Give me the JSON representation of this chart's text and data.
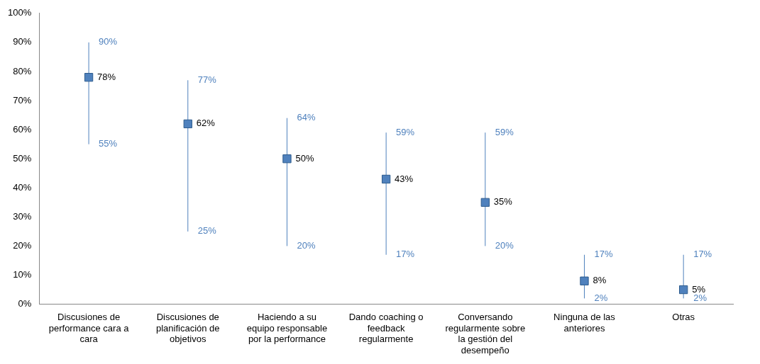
{
  "chart_data": {
    "type": "scatter",
    "categories": [
      "Discusiones de performance cara a cara",
      "Discusiones de planificación de objetivos",
      "Haciendo a su equipo responsable por la performance",
      "Dando coaching o feedback regularmente",
      "Conversando regularmente sobre la gestión del desempeño",
      "Ninguna de las anteriores",
      "Otras"
    ],
    "series": [
      {
        "color": "#4f81bd",
        "values": [
          78,
          62,
          50,
          43,
          35,
          8,
          5
        ],
        "errors": [
          [
            55,
            90
          ],
          [
            25,
            77
          ],
          [
            20,
            64
          ],
          [
            17,
            59
          ],
          [
            20,
            59
          ],
          [
            2,
            17
          ],
          [
            2,
            17
          ]
        ],
        "value_labels": [
          "78%",
          "62%",
          "50%",
          "43%",
          "35%",
          "8%",
          "5%"
        ]
      }
    ],
    "annotations": [
      {
        "text": "90%",
        "x": "Discusiones de performance cara a cara",
        "y": 90
      },
      {
        "text": "55%",
        "x": "Discusiones de performance cara a cara",
        "y": 55
      },
      {
        "text": "77%",
        "x": "Discusiones de planificación de objetivos",
        "y": 77
      },
      {
        "text": "25%",
        "x": "Discusiones de planificación de objetivos",
        "y": 25
      },
      {
        "text": "64%",
        "x": "Haciendo a su equipo responsable por la performance",
        "y": 64
      },
      {
        "text": "20%",
        "x": "Haciendo a su equipo responsable por la performance",
        "y": 20
      },
      {
        "text": "59%",
        "x": "Dando coaching o feedback regularmente",
        "y": 59
      },
      {
        "text": "17%",
        "x": "Dando coaching o feedback regularmente",
        "y": 17
      },
      {
        "text": "59%",
        "x": "Conversando regularmente sobre la gestión del desempeño",
        "y": 59
      },
      {
        "text": "20%",
        "x": "Conversando regularmente sobre la gestión del desempeño",
        "y": 20
      },
      {
        "text": "17%",
        "x": "Ninguna de las anteriores",
        "y": 17
      },
      {
        "text": "2%",
        "x": "Ninguna de las anteriores",
        "y": 2
      },
      {
        "text": "17%",
        "x": "Otras",
        "y": 17
      },
      {
        "text": "2%",
        "x": "Otras",
        "y": 2
      }
    ],
    "ylim": [
      0,
      100
    ],
    "yticks": [
      {
        "value": 0,
        "label": "0%"
      },
      {
        "value": 10,
        "label": "10%"
      },
      {
        "value": 20,
        "label": "20%"
      },
      {
        "value": 30,
        "label": "30%"
      },
      {
        "value": 40,
        "label": "40%"
      },
      {
        "value": 50,
        "label": "50%"
      },
      {
        "value": 60,
        "label": "60%"
      },
      {
        "value": 70,
        "label": "70%"
      },
      {
        "value": 80,
        "label": "80%"
      },
      {
        "value": 90,
        "label": "90%"
      },
      {
        "value": 100,
        "label": "100%"
      }
    ],
    "grid": false,
    "legend": false,
    "marker": "square"
  }
}
